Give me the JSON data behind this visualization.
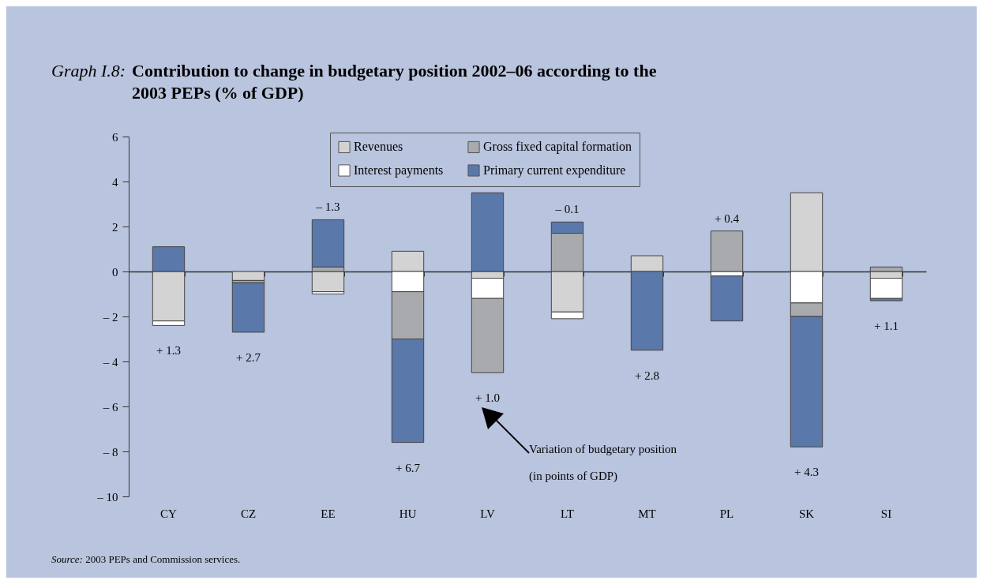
{
  "chart_data": {
    "type": "bar",
    "stacked": true,
    "title": "Graph I.8: Contribution to change in budgetary position 2002–06 according to the 2003 PEPs (% of GDP)",
    "categories": [
      "CY",
      "CZ",
      "EE",
      "HU",
      "LV",
      "LT",
      "MT",
      "PL",
      "SK",
      "SI"
    ],
    "series": [
      {
        "name": "Revenues",
        "color": "#d3d3d3",
        "values": [
          -2.2,
          -0.4,
          -0.9,
          0.9,
          -0.3,
          -1.8,
          0.7,
          null,
          3.5,
          -0.3
        ]
      },
      {
        "name": "Interest payments",
        "color": "#ffffff",
        "values": [
          -0.2,
          null,
          -0.1,
          -0.9,
          -0.9,
          -0.3,
          null,
          -0.2,
          -1.4,
          -0.9
        ]
      },
      {
        "name": "Gross fixed capital formation",
        "color": "#a9aaad",
        "values": [
          null,
          -0.1,
          0.2,
          -2.1,
          -3.3,
          1.7,
          null,
          1.8,
          -0.6,
          0.2
        ]
      },
      {
        "name": "Primary current expenditure",
        "color": "#5a78aa",
        "values": [
          1.1,
          -2.2,
          2.1,
          -4.6,
          3.5,
          0.5,
          -3.5,
          -2.0,
          -5.8,
          -0.1
        ]
      }
    ],
    "ylim": [
      -10,
      6
    ],
    "yticks": [
      {
        "value": -10,
        "label": "– 10"
      },
      {
        "value": -8,
        "label": "– 8"
      },
      {
        "value": -6,
        "label": "– 6"
      },
      {
        "value": -4,
        "label": "– 4"
      },
      {
        "value": -2,
        "label": "– 2"
      },
      0,
      2,
      4,
      6
    ],
    "legend": "top",
    "annotations": [
      {
        "text": "+ 1.3",
        "x": "CY",
        "y": -2.4
      },
      {
        "text": "+ 2.7",
        "x": "CZ",
        "y": -2.7
      },
      {
        "text": "– 1.3",
        "x": "EE",
        "y": 2.3
      },
      {
        "text": "+ 6.7",
        "x": "HU",
        "y": -7.6
      },
      {
        "text": "+ 1.0",
        "x": "LV",
        "y": -4.5
      },
      {
        "text": "– 0.1",
        "x": "LT",
        "y": 2.2
      },
      {
        "text": "+ 2.8",
        "x": "MT",
        "y": -3.5
      },
      {
        "text": "+ 0.4",
        "x": "PL",
        "y": 1.8
      },
      {
        "text": "+ 4.3",
        "x": "SK",
        "y": -7.8
      },
      {
        "text": "+ 1.1",
        "x": "SI",
        "y": -1.3
      },
      "Variation of budgetary position (in points of GDP)",
      "Source: 2003 PEPs and Commission services."
    ]
  }
}
